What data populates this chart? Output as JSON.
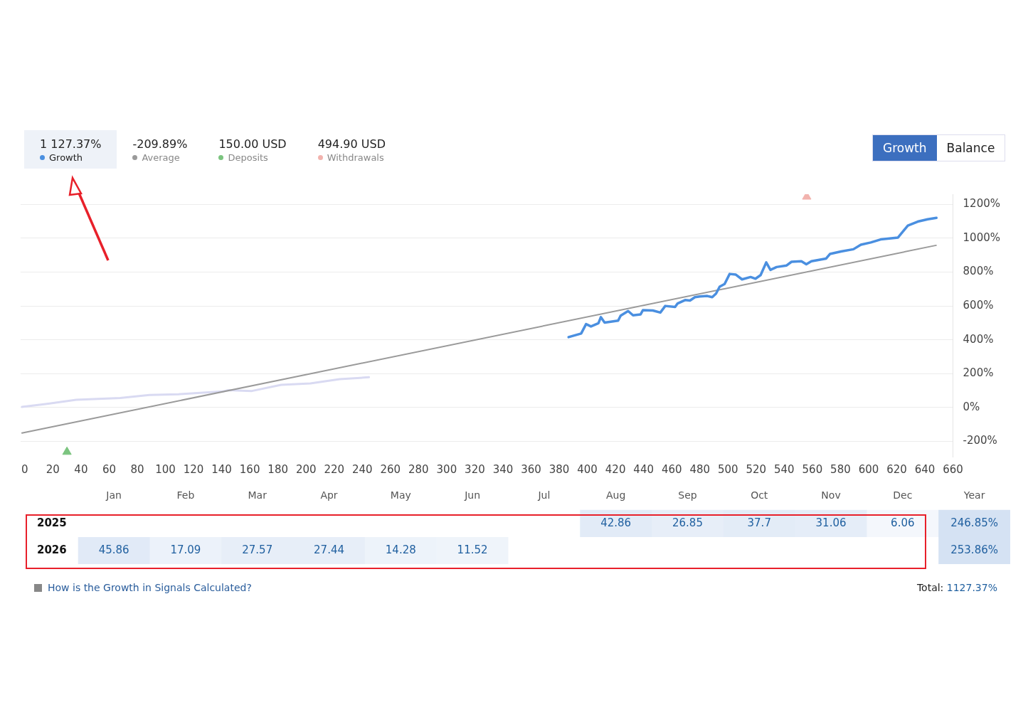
{
  "chart_data": [
    {
      "type": "line",
      "xlim": [
        -3,
        660
      ],
      "xticks": [
        0,
        20,
        40,
        60,
        80,
        100,
        120,
        140,
        160,
        180,
        200,
        220,
        240,
        260,
        280,
        300,
        320,
        340,
        360,
        380,
        400,
        420,
        440,
        460,
        480,
        500,
        520,
        540,
        560,
        580,
        600,
        620,
        640,
        660
      ],
      "ylim": [
        -290,
        1260
      ],
      "yticks": [
        {
          "value": -200,
          "label": "-200%"
        },
        {
          "value": 0,
          "label": "0%"
        },
        {
          "value": 200,
          "label": "200%"
        },
        {
          "value": 400,
          "label": "400%"
        },
        {
          "value": 600,
          "label": "600%"
        },
        {
          "value": 800,
          "label": "800%"
        },
        {
          "value": 1000,
          "label": "1000%"
        },
        {
          "value": 1200,
          "label": "1200%"
        }
      ],
      "grid": "y",
      "legend": "top left",
      "marker": "none",
      "line_style": "solid",
      "series": [
        {
          "name": "Growth",
          "color": "#4a8fe0",
          "x": [
            386.7,
            395.6,
            399.1,
            402.6,
            407.9,
            409.6,
            412.3,
            421.9,
            423.7,
            429.0,
            432.5,
            437.8,
            439.5,
            446.6,
            451.9,
            455.4,
            462.4,
            464.2,
            469.5,
            473.0,
            476.5,
            480.0,
            485.3,
            488.8,
            491.5,
            494.1,
            497.6,
            501.2,
            505.6,
            510.0,
            516.1,
            519.6,
            523.2,
            527.2,
            530.2,
            534.6,
            541.7,
            545.2,
            552.2,
            555.7,
            559.3,
            569.8,
            572.5,
            580.4,
            589.2,
            594.5,
            601.5,
            608.6,
            620.9,
            627.9,
            634.9,
            642.0,
            648.2
          ],
          "values": [
            416,
            437,
            493,
            479,
            498,
            534,
            502,
            513,
            543,
            570,
            545,
            550,
            575,
            573,
            561,
            600,
            594,
            615,
            635,
            632,
            652,
            656,
            659,
            652,
            673,
            714,
            730,
            789,
            785,
            757,
            771,
            761,
            782,
            857,
            813,
            830,
            839,
            861,
            864,
            846,
            864,
            880,
            907,
            922,
            935,
            962,
            975,
            993,
            1004,
            1075,
            1098,
            1112,
            1120
          ]
        },
        {
          "name": "Average",
          "color": "#9a9a9a",
          "x": [
            -2,
            648
          ],
          "values": [
            -150,
            958
          ]
        },
        {
          "name": "Deposits",
          "type": "scatter",
          "marker": "triangle",
          "color": "#7bc47f",
          "x": [
            30
          ],
          "values": [
            -262
          ]
        },
        {
          "name": "Withdrawals",
          "type": "scatter",
          "marker": "triangle",
          "color": "#f2b3ae",
          "x": [
            556
          ],
          "values": [
            1245
          ]
        },
        {
          "color": "#d9daf2",
          "x": [
            -2,
            15.8,
            36.6,
            67.8,
            88.6,
            109.4,
            140.6,
            144.8,
            161.5,
            182.3,
            203.1,
            223.9,
            244.7
          ],
          "values": [
            4,
            22,
            46,
            57,
            74,
            79,
            95,
            103,
            98,
            134,
            143,
            168,
            179
          ]
        }
      ],
      "annotations": [
        "1 127.37%",
        "-209.89%",
        "150.00 USD",
        "494.90 USD",
        "Growth",
        "Balance"
      ]
    },
    {
      "type": "heatmap",
      "categories": [
        "Jan",
        "Feb",
        "Mar",
        "Apr",
        "May",
        "Jun",
        "Jul",
        "Aug",
        "Sep",
        "Oct",
        "Nov",
        "Dec",
        "Year"
      ],
      "y_categories": [
        "2025",
        "2026"
      ],
      "cells": [
        [
          null,
          null,
          null,
          null,
          null,
          null,
          null,
          42.86,
          26.85,
          37.7,
          31.06,
          6.06,
          246.85
        ],
        [
          45.86,
          17.09,
          27.57,
          27.44,
          14.28,
          11.52,
          null,
          null,
          null,
          null,
          null,
          null,
          253.86
        ]
      ],
      "cell_labels": [
        [
          null,
          null,
          null,
          null,
          null,
          null,
          null,
          "42.86",
          "26.85",
          "37.7",
          "31.06",
          "6.06",
          "246.85%"
        ],
        [
          "45.86",
          "17.09",
          "27.57",
          "27.44",
          "14.28",
          "11.52",
          null,
          null,
          null,
          null,
          null,
          null,
          "253.86%"
        ]
      ],
      "annotations": [
        "How is the Growth in Signals Calculated?",
        "Total:",
        "1127.37%"
      ]
    }
  ]
}
